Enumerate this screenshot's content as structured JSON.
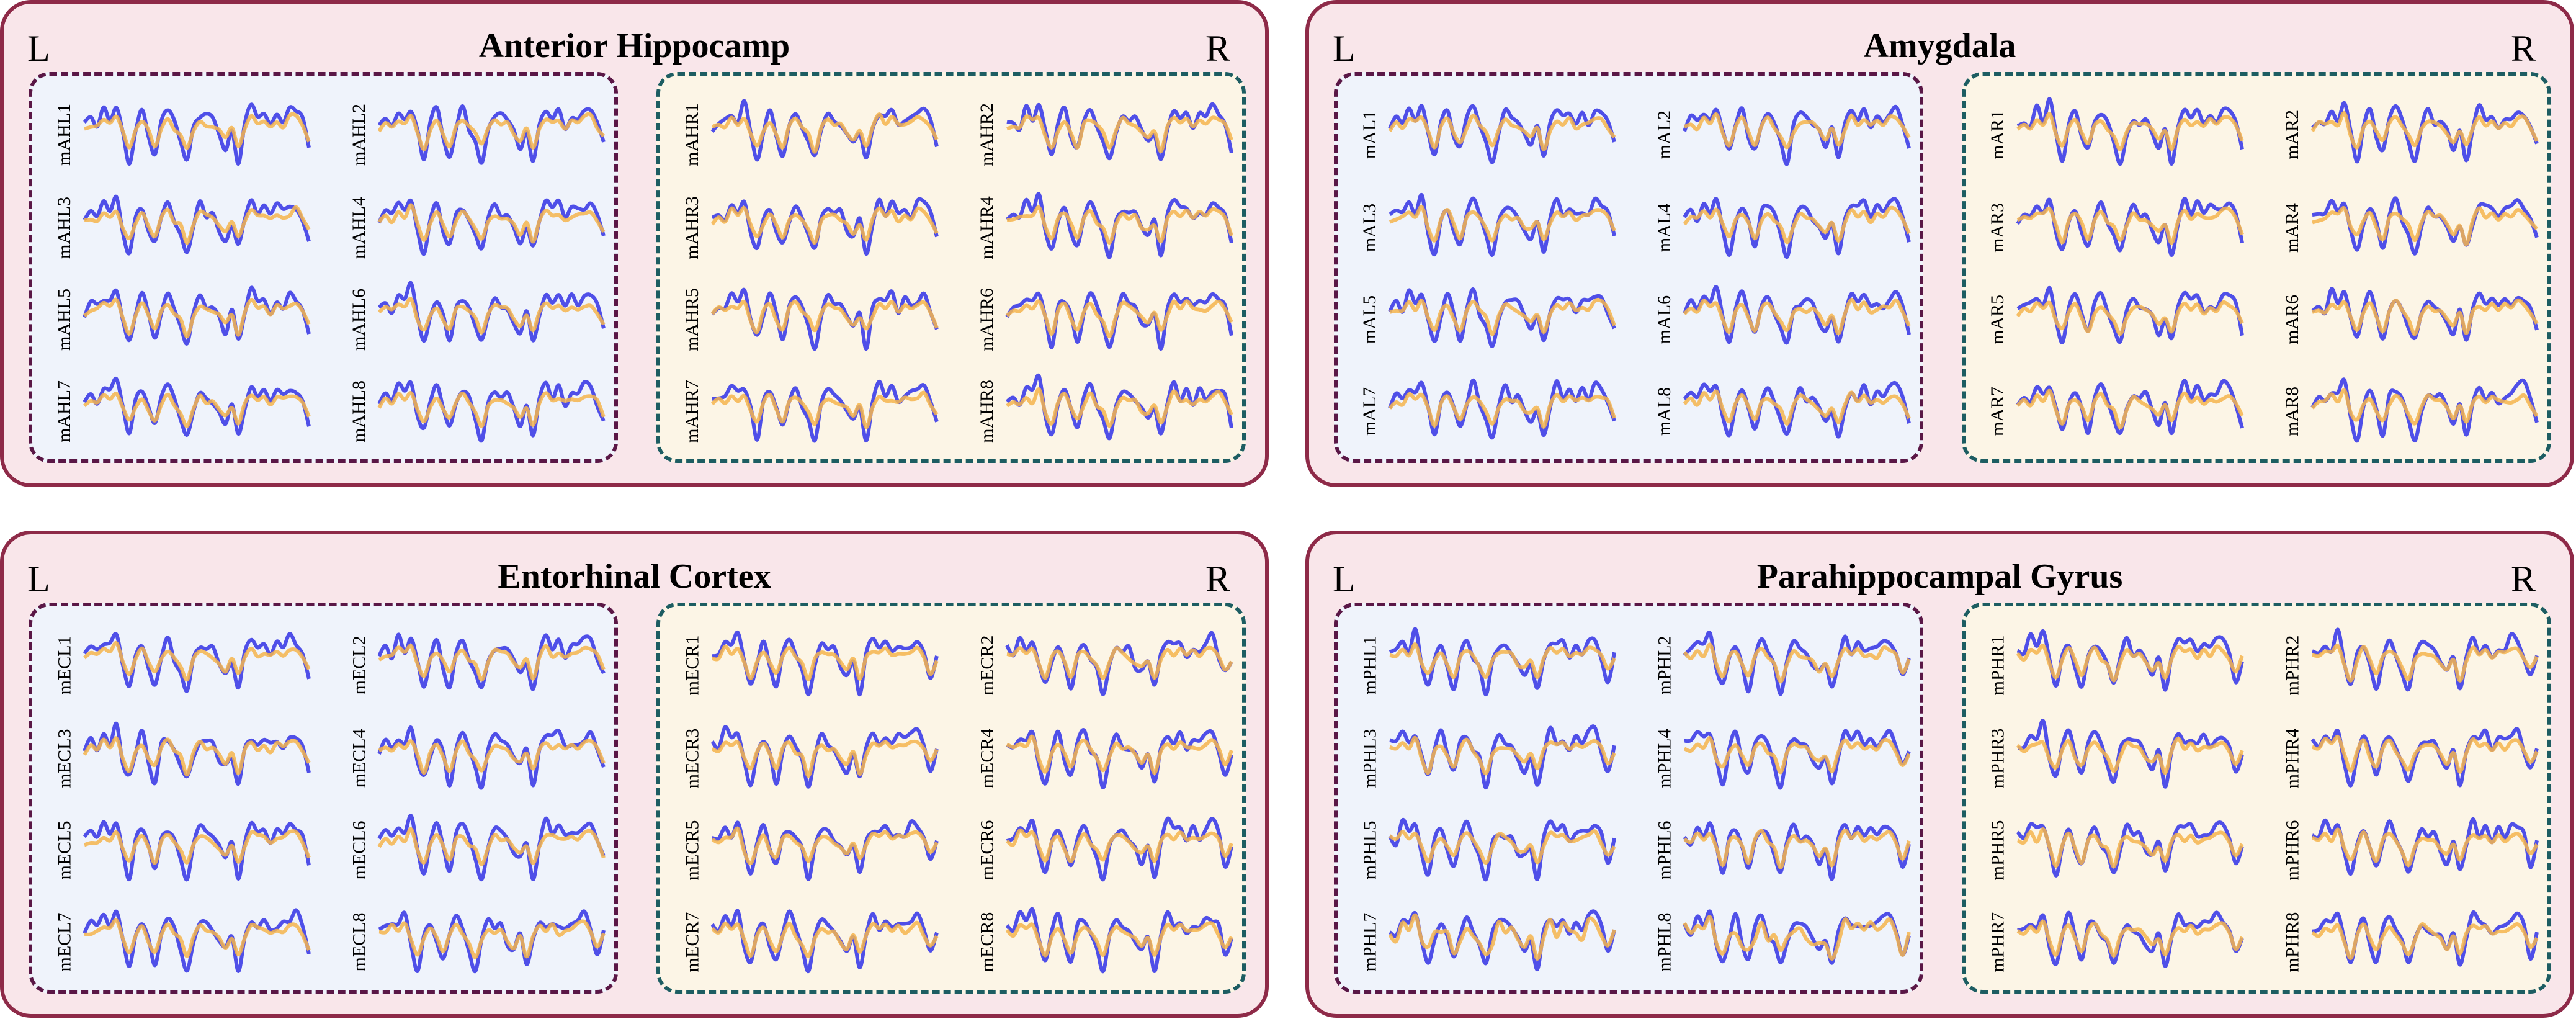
{
  "figure": {
    "colors": {
      "panel_fill": "#f9e6ea",
      "panel_border": "#8e2a48",
      "left_fill": "#eff3fb",
      "left_border": "#5a1746",
      "right_fill": "#fcf5e6",
      "right_border": "#1d5d62",
      "series_a": "#4f4fe8",
      "series_b": "#f4b44c"
    }
  },
  "panels": [
    {
      "title": "Anterior Hippocamp",
      "left_label": "L",
      "right_label": "R",
      "left_channels": [
        "mAHL1",
        "mAHL2",
        "mAHL3",
        "mAHL4",
        "mAHL5",
        "mAHL6",
        "mAHL7",
        "mAHL8"
      ],
      "right_channels": [
        "mAHR1",
        "mAHR2",
        "mAHR3",
        "mAHR4",
        "mAHR5",
        "mAHR6",
        "mAHR7",
        "mAHR8"
      ]
    },
    {
      "title": "Amygdala",
      "left_label": "L",
      "right_label": "R",
      "left_channels": [
        "mAL1",
        "mAL2",
        "mAL3",
        "mAL4",
        "mAL5",
        "mAL6",
        "mAL7",
        "mAL8"
      ],
      "right_channels": [
        "mAR1",
        "mAR2",
        "mAR3",
        "mAR4",
        "mAR5",
        "mAR6",
        "mAR7",
        "mAR8"
      ]
    },
    {
      "title": "Entorhinal Cortex",
      "left_label": "L",
      "right_label": "R",
      "left_channels": [
        "mECL1",
        "mECL2",
        "mECL3",
        "mECL4",
        "mECL5",
        "mECL6",
        "mECL7",
        "mECL8"
      ],
      "right_channels": [
        "mECR1",
        "mECR2",
        "mECR3",
        "mECR4",
        "mECR5",
        "mECR6",
        "mECR7",
        "mECR8"
      ]
    },
    {
      "title": "Parahippocampal Gyrus",
      "left_label": "L",
      "right_label": "R",
      "left_channels": [
        "mPHL1",
        "mPHL2",
        "mPHL3",
        "mPHL4",
        "mPHL5",
        "mPHL6",
        "mPHL7",
        "mPHL8"
      ],
      "right_channels": [
        "mPHR1",
        "mPHR2",
        "mPHR3",
        "mPHR4",
        "mPHR5",
        "mPHR6",
        "mPHR7",
        "mPHR8"
      ]
    }
  ],
  "chart_data": {
    "type": "line",
    "title": "Anterior Hippocamp / Amygdala / Entorhinal Cortex / Parahippocampal Gyrus",
    "xlabel": "",
    "ylabel": "",
    "grid": false,
    "series_names": [
      "blue trace",
      "orange trace"
    ],
    "base_waveform": [
      0.3,
      0.2,
      0.55,
      0.35,
      0.7,
      -0.15,
      -0.75,
      0.1,
      0.5,
      -0.1,
      -0.65,
      0.2,
      0.55,
      0.15,
      -0.2,
      -0.85,
      0.0,
      0.45,
      0.3,
      0.25,
      -0.1,
      -0.4,
      0.0,
      -0.8,
      0.1,
      0.6,
      0.35,
      0.5,
      0.2,
      0.4,
      0.3,
      0.55,
      0.6,
      0.2,
      -0.45,
      0.1
    ],
    "channels_per_hemisphere": 8,
    "panels": [
      "Anterior Hippocamp",
      "Amygdala",
      "Entorhinal Cortex",
      "Parahippocampal Gyrus"
    ]
  }
}
